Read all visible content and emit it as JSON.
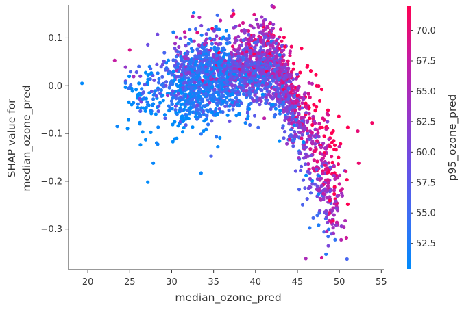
{
  "chart_data": {
    "type": "scatter",
    "xlabel": "median_ozone_pred",
    "ylabel_lines": [
      "SHAP value for",
      "median_ozone_pred"
    ],
    "xlim": [
      17.7,
      55.3
    ],
    "ylim": [
      -0.385,
      0.168
    ],
    "xticks": [
      20,
      25,
      30,
      35,
      40,
      45,
      50,
      55
    ],
    "yticks": [
      0.1,
      0.0,
      -0.1,
      -0.2,
      -0.3
    ],
    "ytick_labels": [
      "0.1",
      "0.0",
      "−0.1",
      "−0.2",
      "−0.3"
    ],
    "grid": false,
    "colorbar": {
      "label": "p95_ozone_pred",
      "range": [
        50.4,
        72.0
      ],
      "ticks": [
        52.5,
        55.0,
        57.5,
        60.0,
        62.5,
        65.0,
        67.5,
        70.0
      ],
      "tick_labels": [
        "52.5",
        "55.0",
        "57.5",
        "60.0",
        "62.5",
        "65.0",
        "67.5",
        "70.0"
      ],
      "colormap": [
        "#008bfb",
        "#3c6ef3",
        "#6a4fe4",
        "#9a35c6",
        "#c61ca3",
        "#ff0052"
      ]
    },
    "point_count_note": "approx. 3000 points; dense cloud peaking near x=38-43, decreasing toward x=50",
    "outliers": [
      {
        "x": 19.3,
        "y": 0.005,
        "c": 50.6
      },
      {
        "x": 23.2,
        "y": 0.053,
        "c": 67.5
      },
      {
        "x": 25.0,
        "y": 0.075,
        "c": 69.0
      },
      {
        "x": 23.5,
        "y": -0.085,
        "c": 51.2
      },
      {
        "x": 27.8,
        "y": -0.162,
        "c": 51.0
      },
      {
        "x": 28.2,
        "y": -0.12,
        "c": 51.5
      },
      {
        "x": 46.0,
        "y": -0.362,
        "c": 65.0
      },
      {
        "x": 47.9,
        "y": -0.36,
        "c": 68.5
      },
      {
        "x": 49.0,
        "y": -0.285,
        "c": 70.0
      },
      {
        "x": 48.5,
        "y": -0.305,
        "c": 66.0
      },
      {
        "x": 53.9,
        "y": -0.078,
        "c": 71.0
      },
      {
        "x": 52.2,
        "y": -0.095,
        "c": 70.0
      },
      {
        "x": 52.3,
        "y": -0.162,
        "c": 70.5
      },
      {
        "x": 30.2,
        "y": 0.112,
        "c": 52.0
      },
      {
        "x": 32.5,
        "y": 0.145,
        "c": 68.0
      },
      {
        "x": 33.3,
        "y": 0.143,
        "c": 66.0
      },
      {
        "x": 39.5,
        "y": 0.125,
        "c": 66.0
      },
      {
        "x": 43.0,
        "y": 0.118,
        "c": 69.0
      },
      {
        "x": 35.5,
        "y": -0.128,
        "c": 51.0
      },
      {
        "x": 33.5,
        "y": -0.183,
        "c": 51.0
      }
    ]
  }
}
